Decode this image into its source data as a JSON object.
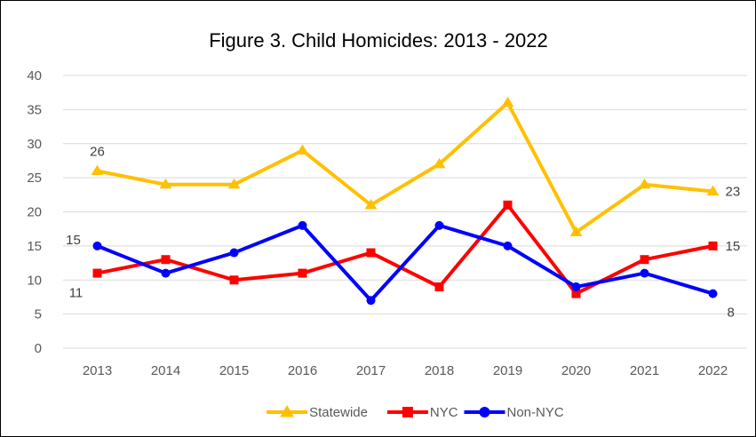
{
  "chart_data": {
    "type": "line",
    "title": "Figure 3. Child Homicides: 2013 - 2022",
    "xlabel": "",
    "ylabel": "",
    "categories": [
      "2013",
      "2014",
      "2015",
      "2016",
      "2017",
      "2018",
      "2019",
      "2020",
      "2021",
      "2022"
    ],
    "ylim": [
      0,
      40
    ],
    "yticks": [
      0,
      5,
      10,
      15,
      20,
      25,
      30,
      35,
      40
    ],
    "grid": true,
    "legend_position": "bottom",
    "series": [
      {
        "name": "Statewide",
        "color": "#FFC000",
        "marker": "triangle",
        "values": [
          26,
          24,
          24,
          29,
          21,
          27,
          36,
          17,
          24,
          23
        ]
      },
      {
        "name": "NYC",
        "color": "#FF0000",
        "marker": "square",
        "values": [
          11,
          13,
          10,
          11,
          14,
          9,
          21,
          8,
          13,
          15
        ]
      },
      {
        "name": "Non-NYC",
        "color": "#0000FF",
        "marker": "circle",
        "values": [
          15,
          11,
          14,
          18,
          7,
          18,
          15,
          9,
          11,
          8
        ]
      }
    ],
    "data_labels": [
      {
        "series": "Statewide",
        "category": "2013",
        "text": "26",
        "side": "above"
      },
      {
        "series": "Non-NYC",
        "category": "2013",
        "text": "15",
        "side": "left"
      },
      {
        "series": "NYC",
        "category": "2013",
        "text": "11",
        "side": "below-left"
      },
      {
        "series": "Statewide",
        "category": "2022",
        "text": "23",
        "side": "right"
      },
      {
        "series": "NYC",
        "category": "2022",
        "text": "15",
        "side": "right"
      },
      {
        "series": "Non-NYC",
        "category": "2022",
        "text": "8",
        "side": "below-right"
      }
    ]
  }
}
